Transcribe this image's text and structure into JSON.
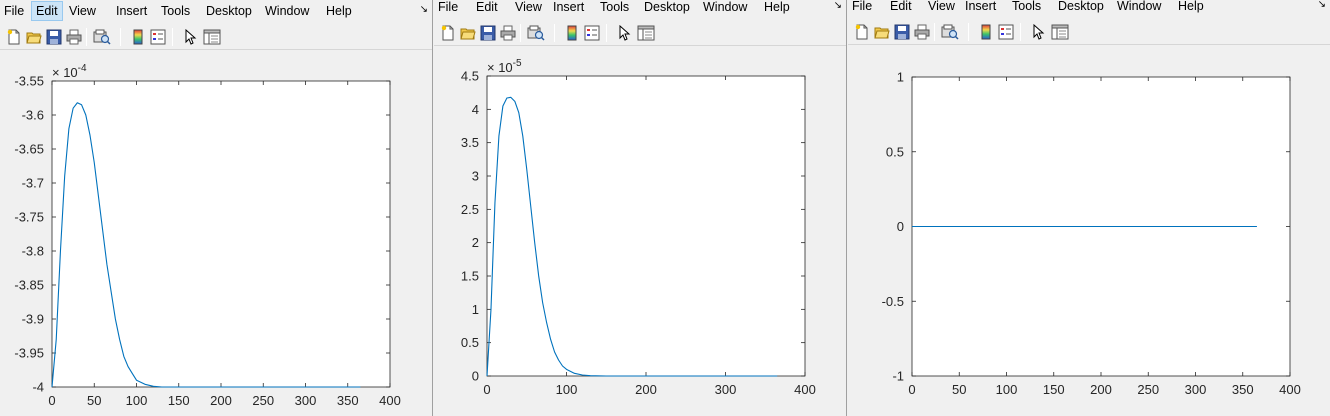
{
  "menus": [
    "File",
    "Edit",
    "View",
    "Insert",
    "Tools",
    "Desktop",
    "Window",
    "Help"
  ],
  "dock_glyph": "↘",
  "toolbar_icons": [
    "new-figure-icon",
    "open-file-icon",
    "save-icon",
    "print-icon",
    "print-preview-icon",
    "colorbar-icon",
    "legend-icon",
    "pointer-icon",
    "property-inspector-icon"
  ],
  "line_color": "#0072bd",
  "chart_data": [
    {
      "type": "line",
      "xlim": [
        0,
        400
      ],
      "ylim": [
        -4.0,
        -3.55
      ],
      "y_multiplier": "× 10",
      "y_exponent": "-4",
      "xticks": [
        "0",
        "50",
        "100",
        "150",
        "200",
        "250",
        "300",
        "350",
        "400"
      ],
      "yticks": [
        "-3.55",
        "-3.6",
        "-3.65",
        "-3.7",
        "-3.75",
        "-3.8",
        "-3.85",
        "-3.9",
        "-3.95",
        "-4"
      ],
      "series": [
        {
          "x": [
            0,
            5,
            10,
            15,
            20,
            25,
            30,
            35,
            40,
            45,
            50,
            55,
            60,
            65,
            70,
            75,
            80,
            85,
            90,
            95,
            100,
            110,
            120,
            130,
            150,
            200,
            250,
            300,
            365
          ],
          "y": [
            -4.0,
            -3.93,
            -3.8,
            -3.69,
            -3.62,
            -3.59,
            -3.582,
            -3.585,
            -3.6,
            -3.63,
            -3.67,
            -3.72,
            -3.77,
            -3.82,
            -3.86,
            -3.9,
            -3.93,
            -3.955,
            -3.97,
            -3.98,
            -3.99,
            -3.996,
            -3.999,
            -4.0,
            -4.0,
            -4.0,
            -4.0,
            -4.0,
            -4.0
          ]
        }
      ]
    },
    {
      "type": "line",
      "xlim": [
        0,
        400
      ],
      "ylim": [
        0,
        4.5
      ],
      "y_multiplier": "× 10",
      "y_exponent": "-5",
      "xticks": [
        "0",
        "100",
        "200",
        "300",
        "400"
      ],
      "yticks": [
        "0",
        "0.5",
        "1",
        "1.5",
        "2",
        "2.5",
        "3",
        "3.5",
        "4",
        "4.5"
      ],
      "series": [
        {
          "x": [
            0,
            5,
            10,
            15,
            20,
            25,
            30,
            35,
            40,
            45,
            50,
            55,
            60,
            65,
            70,
            75,
            80,
            85,
            90,
            95,
            100,
            110,
            120,
            130,
            150,
            200,
            250,
            300,
            365
          ],
          "y": [
            0.0,
            1.0,
            2.6,
            3.6,
            4.05,
            4.17,
            4.18,
            4.12,
            3.95,
            3.6,
            3.1,
            2.55,
            2.0,
            1.5,
            1.1,
            0.8,
            0.55,
            0.36,
            0.24,
            0.15,
            0.1,
            0.04,
            0.015,
            0.005,
            0.0,
            0.0,
            0.0,
            0.0,
            0.0
          ]
        }
      ]
    },
    {
      "type": "line",
      "xlim": [
        0,
        400
      ],
      "ylim": [
        -1,
        1
      ],
      "xticks": [
        "0",
        "50",
        "100",
        "150",
        "200",
        "250",
        "300",
        "350",
        "400"
      ],
      "yticks": [
        "-1",
        "-0.5",
        "0",
        "0.5",
        "1"
      ],
      "series": [
        {
          "x": [
            0,
            365
          ],
          "y": [
            0,
            0
          ]
        }
      ]
    }
  ]
}
